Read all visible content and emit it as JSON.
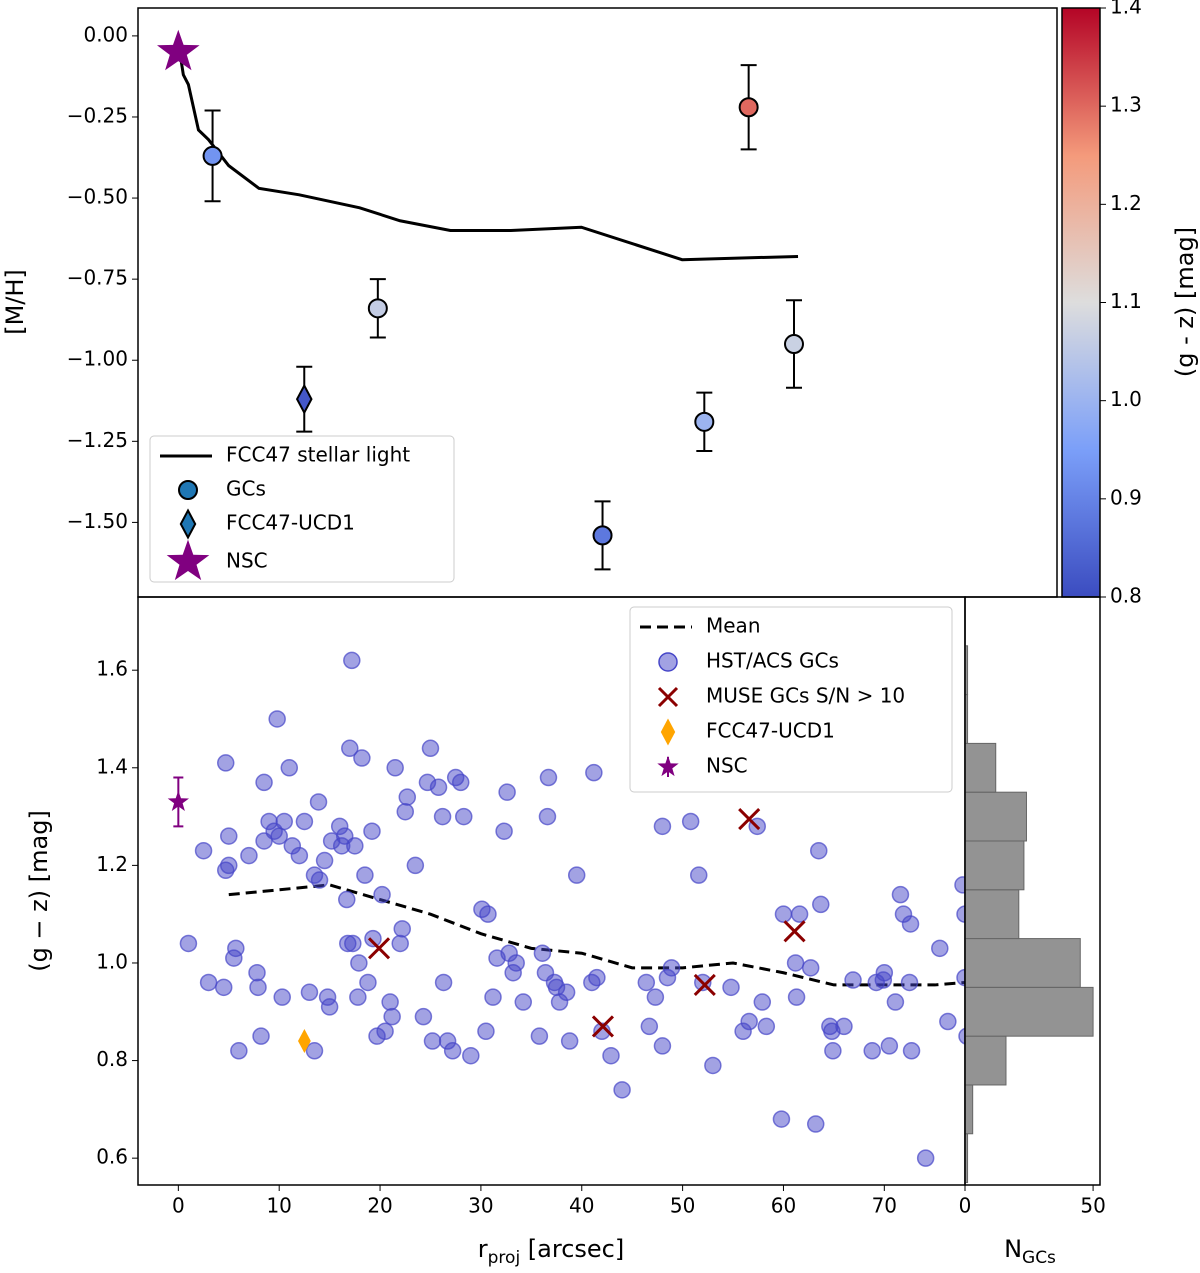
{
  "chart_data": [
    {
      "type": "scatter",
      "ylabel": "[M/H]",
      "xlim": [
        -4,
        87.2
      ],
      "ylim": [
        -1.73,
        0.086
      ],
      "yticks": [
        {
          "value": 0,
          "label": "0.00"
        },
        {
          "value": -0.25,
          "label": "−0.25"
        },
        {
          "value": -0.5,
          "label": "−0.50"
        },
        {
          "value": -0.75,
          "label": "−0.75"
        },
        {
          "value": -1,
          "label": "−1.00"
        },
        {
          "value": -1.25,
          "label": "−1.25"
        },
        {
          "value": -1.5,
          "label": "−1.50"
        }
      ],
      "legend": "lower left",
      "series": [
        {
          "name": "FCC47 stellar light",
          "kind": "line",
          "color": "#000000",
          "x": [
            0.3,
            0.5,
            1,
            2,
            3,
            4,
            5,
            8,
            12,
            18,
            22,
            27,
            33,
            40,
            50,
            61.5
          ],
          "values": [
            -0.08,
            -0.12,
            -0.15,
            -0.29,
            -0.32,
            -0.36,
            -0.4,
            -0.47,
            -0.49,
            -0.53,
            -0.57,
            -0.6,
            -0.6,
            -0.59,
            -0.69,
            -0.68
          ]
        },
        {
          "name": "GCs",
          "kind": "points",
          "marker": "circle",
          "color": "#1f77b4",
          "x": [
            3.4,
            19.8,
            42.1,
            52.2,
            56.6,
            61.1
          ],
          "values": [
            -0.37,
            -0.84,
            -1.54,
            -1.19,
            -0.22,
            -0.95
          ],
          "errors": [
            0.14,
            0.09,
            0.105,
            0.09,
            0.13,
            0.135
          ],
          "color_values": [
            0.93,
            1.06,
            0.88,
            1.0,
            1.3,
            1.07
          ]
        },
        {
          "name": "FCC47-UCD1",
          "kind": "points",
          "marker": "diamond",
          "color": "#1f77b4",
          "x": [
            12.5
          ],
          "values": [
            -1.12
          ],
          "errors": [
            0.1
          ],
          "color_values": [
            0.82
          ]
        },
        {
          "name": "NSC",
          "kind": "points",
          "marker": "star",
          "color": "#800080",
          "x": [
            0
          ],
          "values": [
            -0.05
          ]
        }
      ],
      "colorbar": {
        "label": "(g - z) [mag]",
        "colormap": "coolwarm",
        "lim": [
          0.8,
          1.4
        ],
        "ticks": [
          0.8,
          0.9,
          {
            "value": 1,
            "label": "1.0"
          },
          1.1,
          1.2,
          1.3,
          1.4
        ]
      }
    },
    {
      "type": "scatter",
      "xlabel": {
        "main": "r",
        "sub": "proj",
        "unit": " [arcsec]"
      },
      "ylabel": "(g − z) [mag]",
      "xlim": [
        -4,
        78
      ],
      "ylim": [
        0.545,
        1.75
      ],
      "xticks": [
        0,
        10,
        20,
        30,
        40,
        50,
        60,
        70
      ],
      "yticks": [
        0.6,
        0.8,
        {
          "value": 1,
          "label": "1.0"
        },
        1.2,
        1.4,
        1.6
      ],
      "legend": "upper right",
      "series": [
        {
          "name": "Mean",
          "kind": "line",
          "dashed": true,
          "color": "#000000",
          "x": [
            5,
            10,
            15,
            20,
            25,
            30,
            35,
            40,
            45,
            50,
            55,
            60,
            65,
            70,
            75,
            78
          ],
          "values": [
            1.14,
            1.15,
            1.16,
            1.13,
            1.1,
            1.06,
            1.03,
            1.02,
            0.99,
            0.99,
            1.0,
            0.98,
            0.955,
            0.955,
            0.955,
            0.96
          ]
        },
        {
          "name": "HST/ACS GCs",
          "kind": "points",
          "marker": "circle",
          "color": "#4646c8",
          "x": [
            1.0,
            2.5,
            3.0,
            4.5,
            4.7,
            4.7,
            5.0,
            5.0,
            5.5,
            5.7,
            6.0,
            7.0,
            7.8,
            7.9,
            8.2,
            8.5,
            8.5,
            9.0,
            9.5,
            10.0,
            10.3,
            10.5,
            9.8,
            11.0,
            11.3,
            12.0,
            12.5,
            13.0,
            13.5,
            13.5,
            13.9,
            14.0,
            14.5,
            14.8,
            15.0,
            15.2,
            16.0,
            16.2,
            16.5,
            16.7,
            16.8,
            17.0,
            17.2,
            17.3,
            17.5,
            17.8,
            17.9,
            18.2,
            18.5,
            18.8,
            19.2,
            19.3,
            19.7,
            20.2,
            20.5,
            21.0,
            21.2,
            21.5,
            22.0,
            22.2,
            22.5,
            22.7,
            23.5,
            24.3,
            24.7,
            25.2,
            25.0,
            25.8,
            26.2,
            26.3,
            26.7,
            27.2,
            27.5,
            28.0,
            28.3,
            29.0,
            30.1,
            30.5,
            30.7,
            31.2,
            31.6,
            32.3,
            32.6,
            32.8,
            33.2,
            33.5,
            34.2,
            35.8,
            36.1,
            36.4,
            36.6,
            36.7,
            37.3,
            37.5,
            37.8,
            38.5,
            38.8,
            39.5,
            41.2,
            41.0,
            41.5,
            42.0,
            42.9,
            44.0,
            46.4,
            46.7,
            47.3,
            48.0,
            48.0,
            48.9,
            48.5,
            50.8,
            51.6,
            52.0,
            53.0,
            54.8,
            56.0,
            56.6,
            57.4,
            57.9,
            58.3,
            59.8,
            60.0,
            61.3,
            61.2,
            61.6,
            62.7,
            63.2,
            63.5,
            63.7,
            64.6,
            64.8,
            64.9,
            66.0,
            66.9,
            68.8,
            69.2,
            69.9,
            70.0,
            70.5,
            71.1,
            71.6,
            71.9,
            72.5,
            72.7,
            72.6,
            74.1,
            75.5,
            76.3,
            77.8,
            78.0,
            78.0,
            78.2
          ],
          "values": [
            1.04,
            1.23,
            0.96,
            0.95,
            1.41,
            1.19,
            1.2,
            1.26,
            1.01,
            1.03,
            0.82,
            1.22,
            0.98,
            0.95,
            0.85,
            1.37,
            1.25,
            1.29,
            1.27,
            1.26,
            0.93,
            1.29,
            1.5,
            1.4,
            1.24,
            1.22,
            1.29,
            0.94,
            1.18,
            0.82,
            1.33,
            1.17,
            1.21,
            0.93,
            0.91,
            1.25,
            1.28,
            1.24,
            1.26,
            1.13,
            1.04,
            1.44,
            1.62,
            1.04,
            1.24,
            0.93,
            1.0,
            1.42,
            1.18,
            0.96,
            1.27,
            1.05,
            0.85,
            1.14,
            0.86,
            0.92,
            0.89,
            1.4,
            1.04,
            1.07,
            1.31,
            1.34,
            1.2,
            0.89,
            1.37,
            0.84,
            1.44,
            1.36,
            1.3,
            0.96,
            0.84,
            0.82,
            1.38,
            1.37,
            1.3,
            0.81,
            1.11,
            0.86,
            1.1,
            0.93,
            1.01,
            1.27,
            1.35,
            1.02,
            0.98,
            1.0,
            0.92,
            0.85,
            1.02,
            0.98,
            1.3,
            1.38,
            0.96,
            0.95,
            0.92,
            0.94,
            0.84,
            1.18,
            1.39,
            0.96,
            0.97,
            0.86,
            0.81,
            0.74,
            0.96,
            0.87,
            0.93,
            1.28,
            0.83,
            0.99,
            0.97,
            1.29,
            1.18,
            0.96,
            0.79,
            0.95,
            0.86,
            0.88,
            1.28,
            0.92,
            0.87,
            0.68,
            1.1,
            0.93,
            1.0,
            1.1,
            0.99,
            0.67,
            1.23,
            1.12,
            0.87,
            0.86,
            0.82,
            0.87,
            0.965,
            0.82,
            0.96,
            0.965,
            0.98,
            0.83,
            0.92,
            1.14,
            1.1,
            0.96,
            0.82,
            1.08,
            0.6,
            1.03,
            0.88,
            1.16,
            1.1,
            0.97,
            0.85
          ]
        },
        {
          "name": "MUSE GCs S/N > 10",
          "kind": "points",
          "marker": "cross",
          "color": "#8b0000",
          "x": [
            19.9,
            42.1,
            52.2,
            56.6,
            61.1
          ],
          "values": [
            1.03,
            0.87,
            0.955,
            1.295,
            1.065
          ]
        },
        {
          "name": "FCC47-UCD1",
          "kind": "points",
          "marker": "diamond",
          "color": "#ffa500",
          "x": [
            12.5
          ],
          "values": [
            0.84
          ]
        },
        {
          "name": "NSC",
          "kind": "points",
          "marker": "star",
          "color": "#800080",
          "x": [
            0
          ],
          "values": [
            1.33
          ],
          "errors": [
            0.05
          ]
        }
      ]
    },
    {
      "type": "histogram",
      "orientation": "horizontal",
      "xlabel": {
        "main": "N",
        "sub": "GCs"
      },
      "bins": [
        0.55,
        0.65,
        0.75,
        0.85,
        0.95,
        1.05,
        1.15,
        1.25,
        1.35,
        1.45,
        1.55,
        1.65
      ],
      "counts": [
        1,
        3,
        16,
        50,
        45,
        21,
        23,
        24,
        12,
        1,
        1
      ],
      "color": "#808080",
      "xlim": [
        0,
        52.7
      ],
      "xticks": [
        0,
        50
      ],
      "ylim": [
        0.545,
        1.75
      ]
    }
  ]
}
